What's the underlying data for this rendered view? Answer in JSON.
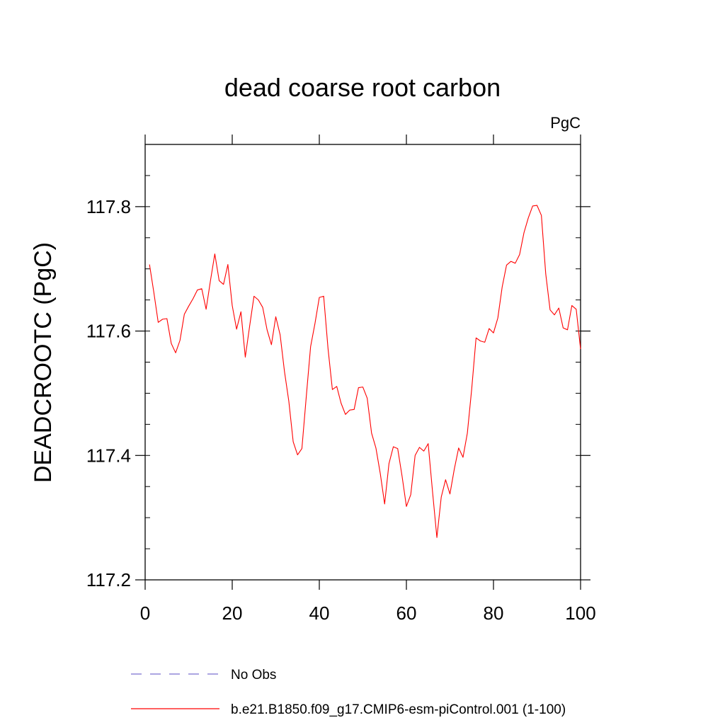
{
  "chart_data": {
    "type": "line",
    "title": "dead coarse root carbon",
    "units_label": "PgC",
    "ylabel": "DEADCROOTC  (PgC)",
    "xlabel": "",
    "xlim": [
      0,
      100
    ],
    "ylim": [
      117.2,
      117.9
    ],
    "x_ticks": [
      0,
      20,
      40,
      60,
      80,
      100
    ],
    "x_tick_labels": [
      "0",
      "20",
      "40",
      "60",
      "80",
      "100"
    ],
    "y_ticks": [
      117.2,
      117.4,
      117.6,
      117.8
    ],
    "y_tick_labels": [
      "117.2",
      "117.4",
      "117.6",
      "117.8"
    ],
    "grid": false,
    "legend_position": "bottom",
    "series": [
      {
        "name": "b.e21.B1850.f09_g17.CMIP6-esm-piControl.001 (1-100)",
        "color": "#ff0000",
        "style": "solid",
        "x": [
          1,
          2,
          3,
          4,
          5,
          6,
          7,
          8,
          9,
          10,
          11,
          12,
          13,
          14,
          15,
          16,
          17,
          18,
          19,
          20,
          21,
          22,
          23,
          24,
          25,
          26,
          27,
          28,
          29,
          30,
          31,
          32,
          33,
          34,
          35,
          36,
          37,
          38,
          39,
          40,
          41,
          42,
          43,
          44,
          45,
          46,
          47,
          48,
          49,
          50,
          51,
          52,
          53,
          54,
          55,
          56,
          57,
          58,
          59,
          60,
          61,
          62,
          63,
          64,
          65,
          66,
          67,
          68,
          69,
          70,
          71,
          72,
          73,
          74,
          75,
          76,
          77,
          78,
          79,
          80,
          81,
          82,
          83,
          84,
          85,
          86,
          87,
          88,
          89,
          90,
          91,
          92,
          93,
          94,
          95,
          96,
          97,
          98,
          99,
          100
        ],
        "values": [
          117.707,
          117.662,
          117.614,
          117.619,
          117.62,
          117.58,
          117.565,
          117.585,
          117.627,
          117.64,
          117.652,
          117.666,
          117.668,
          117.635,
          117.681,
          117.724,
          117.681,
          117.675,
          117.707,
          117.641,
          117.603,
          117.631,
          117.558,
          117.608,
          117.656,
          117.65,
          117.638,
          117.602,
          117.578,
          117.623,
          117.594,
          117.535,
          117.487,
          117.422,
          117.401,
          117.411,
          117.494,
          117.575,
          117.612,
          117.654,
          117.656,
          117.572,
          117.506,
          117.511,
          117.484,
          117.466,
          117.473,
          117.474,
          117.509,
          117.51,
          117.492,
          117.436,
          117.412,
          117.371,
          117.322,
          117.387,
          117.414,
          117.411,
          117.367,
          117.318,
          117.337,
          117.4,
          117.413,
          117.407,
          117.419,
          117.342,
          117.268,
          117.333,
          117.361,
          117.338,
          117.378,
          117.412,
          117.397,
          117.436,
          117.507,
          117.589,
          117.584,
          117.582,
          117.604,
          117.597,
          117.621,
          117.671,
          117.706,
          117.712,
          117.709,
          117.723,
          117.758,
          117.782,
          117.801,
          117.802,
          117.786,
          117.692,
          117.634,
          117.626,
          117.637,
          117.605,
          117.602,
          117.641,
          117.635,
          117.571
        ]
      }
    ],
    "legend": [
      {
        "label": "No Obs",
        "color": "#7b6fd0",
        "style": "dashed"
      },
      {
        "label": "b.e21.B1850.f09_g17.CMIP6-esm-piControl.001 (1-100)",
        "color": "#ff0000",
        "style": "solid"
      }
    ]
  }
}
